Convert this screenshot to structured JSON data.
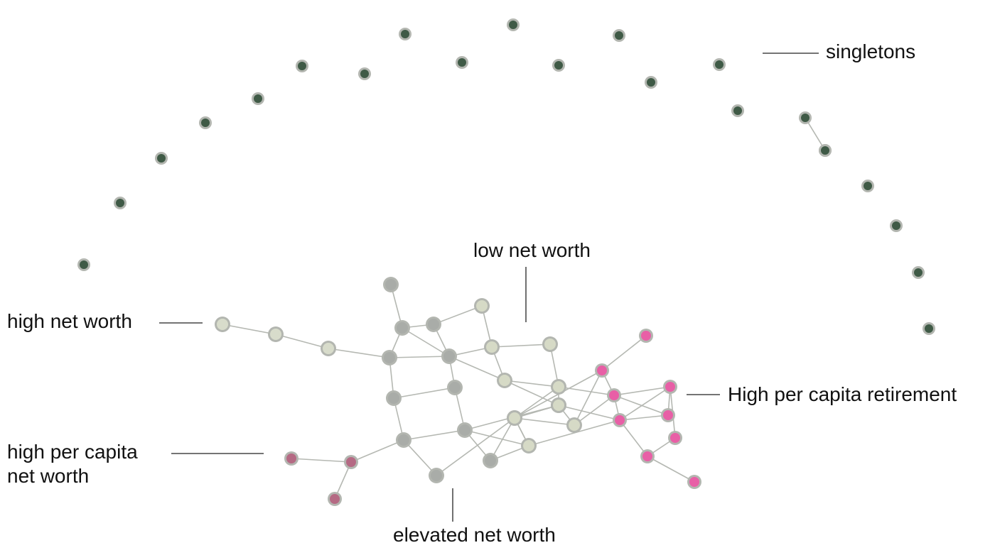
{
  "labels": {
    "singletons": "singletons",
    "low_net_worth": "low net worth",
    "high_net_worth": "high net worth",
    "high_per_capita_retirement": "High per capita retirement",
    "high_per_capita_net_worth_line1": "high per capita",
    "high_per_capita_net_worth_line2": "net worth",
    "elevated_net_worth": "elevated net worth"
  },
  "colors": {
    "singleton": "#3f5a46",
    "high_net_worth": "#d8dccb",
    "low_net_worth": "#d6dac6",
    "elevated": "#a9aca8",
    "retirement": "#e85fa6",
    "per_capita": "#b56a84",
    "edge": "#b5b8b2",
    "node_ring": "#b3b6b0"
  },
  "groups": {
    "singleton": [
      "s1",
      "s2",
      "s3",
      "s4",
      "s5",
      "s6",
      "s7",
      "s8",
      "s9",
      "s10",
      "s11",
      "s12",
      "s13",
      "s14",
      "s15",
      "s16",
      "s17",
      "s18",
      "s19",
      "s20",
      "s21",
      "s22"
    ],
    "high_net_worth": [
      "h1",
      "h2",
      "h3"
    ],
    "elevated": [
      "e1",
      "e2",
      "e3",
      "e4",
      "e5",
      "e6",
      "e7",
      "e8",
      "e9",
      "e10",
      "e11",
      "e12"
    ],
    "low_net_worth": [
      "l1",
      "l2",
      "l3",
      "l4",
      "l5",
      "l6",
      "l7",
      "l8",
      "l9",
      "l10"
    ],
    "retirement": [
      "r1",
      "r2",
      "r3",
      "r4",
      "r5",
      "r6",
      "r7",
      "r8",
      "r9"
    ],
    "per_capita": [
      "p1",
      "p2",
      "p3"
    ]
  },
  "edges": [
    [
      "s18",
      "s19"
    ],
    [
      "h1",
      "h2"
    ],
    [
      "h2",
      "h3"
    ],
    [
      "h3",
      "e3"
    ],
    [
      "e1",
      "e2"
    ],
    [
      "e2",
      "e3"
    ],
    [
      "e2",
      "e4"
    ],
    [
      "e2",
      "e5"
    ],
    [
      "e4",
      "e5"
    ],
    [
      "e4",
      "l1"
    ],
    [
      "e3",
      "e5"
    ],
    [
      "e3",
      "e6"
    ],
    [
      "e5",
      "l2"
    ],
    [
      "e5",
      "e7"
    ],
    [
      "e5",
      "l3"
    ],
    [
      "e6",
      "e8"
    ],
    [
      "e7",
      "e9"
    ],
    [
      "e6",
      "e7"
    ],
    [
      "e8",
      "e9"
    ],
    [
      "e8",
      "e10"
    ],
    [
      "e8",
      "p2"
    ],
    [
      "e9",
      "l6"
    ],
    [
      "e9",
      "e11"
    ],
    [
      "e9",
      "l9"
    ],
    [
      "e10",
      "e12"
    ],
    [
      "e11",
      "e12"
    ],
    [
      "e11",
      "l9"
    ],
    [
      "e12",
      "l9"
    ],
    [
      "l1",
      "l2"
    ],
    [
      "l2",
      "l4"
    ],
    [
      "l2",
      "l3"
    ],
    [
      "l3",
      "l5"
    ],
    [
      "l3",
      "l8"
    ],
    [
      "l4",
      "l5"
    ],
    [
      "l5",
      "l7"
    ],
    [
      "l5",
      "l6"
    ],
    [
      "l6",
      "l7"
    ],
    [
      "l6",
      "l8"
    ],
    [
      "l6",
      "l10"
    ],
    [
      "l7",
      "l8"
    ],
    [
      "l7",
      "l9"
    ],
    [
      "l7",
      "l10"
    ],
    [
      "l7",
      "r1"
    ],
    [
      "l8",
      "r3"
    ],
    [
      "l9",
      "r3"
    ],
    [
      "l10",
      "r2"
    ],
    [
      "l5",
      "r2"
    ],
    [
      "l10",
      "r1"
    ],
    [
      "r1",
      "r5"
    ],
    [
      "r1",
      "r2"
    ],
    [
      "r2",
      "r3"
    ],
    [
      "r2",
      "r4"
    ],
    [
      "r2",
      "r6"
    ],
    [
      "r3",
      "r4"
    ],
    [
      "r3",
      "r6"
    ],
    [
      "r3",
      "r7"
    ],
    [
      "r4",
      "r6"
    ],
    [
      "r6",
      "r8"
    ],
    [
      "r8",
      "r7"
    ],
    [
      "r7",
      "r9"
    ],
    [
      "p1",
      "p2"
    ],
    [
      "p2",
      "p3"
    ]
  ]
}
